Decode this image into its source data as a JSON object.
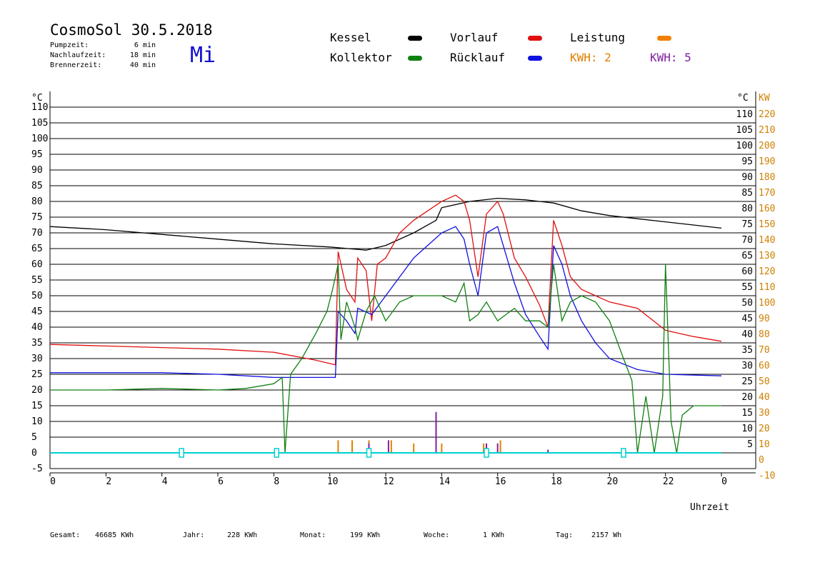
{
  "header": {
    "title": "CosmoSol 30.5.2018",
    "day": "Mi",
    "params": [
      {
        "label": "Pumpzeit:",
        "value": "6 min"
      },
      {
        "label": "Nachlaufzeit:",
        "value": "18 min"
      },
      {
        "label": "Brennerzeit:",
        "value": "40 min"
      }
    ]
  },
  "legend": [
    {
      "label": "Kessel",
      "color": "#000000"
    },
    {
      "label": "Vorlauf",
      "color": "#e01010"
    },
    {
      "label": "Leistung",
      "color": "#f08000"
    },
    {
      "label": "Kollektor",
      "color": "#108010"
    },
    {
      "label": "Rücklauf",
      "color": "#1010e0"
    },
    {
      "label": "KWH: 2",
      "color": "#e08000"
    },
    {
      "label": "KWH: 5",
      "color": "#8020a0"
    }
  ],
  "stats": [
    {
      "label": "Gesamt:",
      "value": "46685 KWh"
    },
    {
      "label": "Jahr:",
      "value": "228 KWh"
    },
    {
      "label": "Monat:",
      "value": "199 KWh"
    },
    {
      "label": "Woche:",
      "value": "1 KWh"
    },
    {
      "label": "Tag:",
      "value": "2157 Wh"
    }
  ],
  "chart_data": {
    "type": "line",
    "xlabel": "Uhrzeit",
    "ylabel_left": "°C",
    "ylabel_right_1": "°C",
    "ylabel_right_2": "KW",
    "xlim": [
      0,
      24
    ],
    "ylim": [
      -5,
      110
    ],
    "x_ticks": [
      "0",
      "2",
      "4",
      "6",
      "8",
      "10",
      "12",
      "14",
      "16",
      "18",
      "20",
      "22",
      "0"
    ],
    "y_ticks_left": [
      "110",
      "105",
      "100",
      "95",
      "90",
      "85",
      "80",
      "75",
      "70",
      "65",
      "60",
      "55",
      "50",
      "45",
      "40",
      "35",
      "30",
      "25",
      "20",
      "15",
      "10",
      "5",
      "0",
      "-5"
    ],
    "y_ticks_right": [
      "110",
      "105",
      "100",
      "95",
      "90",
      "85",
      "80",
      "75",
      "70",
      "65",
      "60",
      "55",
      "50",
      "45",
      "40",
      "35",
      "30",
      "25",
      "20",
      "15",
      "10",
      "5"
    ],
    "y_ticks_kw": [
      "220",
      "210",
      "200",
      "190",
      "180",
      "170",
      "160",
      "150",
      "140",
      "130",
      "120",
      "110",
      "100",
      "90",
      "80",
      "70",
      "60",
      "50",
      "40",
      "30",
      "20",
      "10",
      "0",
      "-10"
    ],
    "grid": true,
    "series": [
      {
        "name": "Kessel",
        "color": "#000000",
        "points": [
          [
            0,
            72
          ],
          [
            2,
            71
          ],
          [
            4,
            69.5
          ],
          [
            6,
            68
          ],
          [
            8,
            66.5
          ],
          [
            10,
            65.5
          ],
          [
            11.3,
            64.5
          ],
          [
            12,
            66
          ],
          [
            13,
            70
          ],
          [
            13.8,
            74
          ],
          [
            14,
            78
          ],
          [
            15,
            80
          ],
          [
            16,
            81
          ],
          [
            17,
            80.5
          ],
          [
            18,
            79.5
          ],
          [
            19,
            77
          ],
          [
            20,
            75.5
          ],
          [
            22,
            73.5
          ],
          [
            24,
            71.5
          ]
        ]
      },
      {
        "name": "Vorlauf",
        "color": "#e01010",
        "points": [
          [
            0,
            34.5
          ],
          [
            2,
            34
          ],
          [
            4,
            33.5
          ],
          [
            6,
            33
          ],
          [
            8,
            32
          ],
          [
            9.5,
            29.5
          ],
          [
            10.2,
            28
          ],
          [
            10.3,
            64
          ],
          [
            10.6,
            52
          ],
          [
            10.9,
            48
          ],
          [
            11,
            62
          ],
          [
            11.3,
            58
          ],
          [
            11.5,
            42
          ],
          [
            11.7,
            60
          ],
          [
            12,
            62
          ],
          [
            12.5,
            70
          ],
          [
            13,
            74
          ],
          [
            13.5,
            77
          ],
          [
            14,
            80
          ],
          [
            14.5,
            82
          ],
          [
            14.8,
            80
          ],
          [
            15,
            74
          ],
          [
            15.3,
            56
          ],
          [
            15.6,
            76
          ],
          [
            16,
            80
          ],
          [
            16.2,
            76
          ],
          [
            16.6,
            62
          ],
          [
            17,
            56
          ],
          [
            17.5,
            47
          ],
          [
            17.8,
            40
          ],
          [
            18,
            74
          ],
          [
            18.3,
            66
          ],
          [
            18.6,
            56
          ],
          [
            19,
            52
          ],
          [
            19.5,
            50
          ],
          [
            20,
            48
          ],
          [
            21,
            46
          ],
          [
            22,
            39
          ],
          [
            23,
            37
          ],
          [
            24,
            35.5
          ]
        ]
      },
      {
        "name": "Rücklauf",
        "color": "#1010e0",
        "points": [
          [
            0,
            25.5
          ],
          [
            2,
            25.5
          ],
          [
            4,
            25.5
          ],
          [
            6,
            25
          ],
          [
            8,
            24
          ],
          [
            10.2,
            24
          ],
          [
            10.3,
            45
          ],
          [
            10.6,
            42
          ],
          [
            10.9,
            38
          ],
          [
            11,
            46
          ],
          [
            11.5,
            44
          ],
          [
            12,
            50
          ],
          [
            12.5,
            56
          ],
          [
            13,
            62
          ],
          [
            13.5,
            66
          ],
          [
            14,
            70
          ],
          [
            14.5,
            72
          ],
          [
            14.8,
            68
          ],
          [
            15,
            60
          ],
          [
            15.3,
            50
          ],
          [
            15.6,
            70
          ],
          [
            16,
            72
          ],
          [
            16.2,
            66
          ],
          [
            16.6,
            54
          ],
          [
            17,
            44
          ],
          [
            17.5,
            37
          ],
          [
            17.8,
            33
          ],
          [
            18,
            66
          ],
          [
            18.3,
            60
          ],
          [
            18.6,
            50
          ],
          [
            19,
            42
          ],
          [
            19.5,
            35
          ],
          [
            20,
            30
          ],
          [
            21,
            26.5
          ],
          [
            22,
            25
          ],
          [
            24,
            24.5
          ]
        ]
      },
      {
        "name": "Kollektor",
        "color": "#108010",
        "points": [
          [
            0,
            20
          ],
          [
            2,
            20
          ],
          [
            4,
            20.5
          ],
          [
            6,
            20
          ],
          [
            7,
            20.5
          ],
          [
            8,
            22
          ],
          [
            8.3,
            24
          ],
          [
            8.4,
            0
          ],
          [
            8.6,
            25
          ],
          [
            9,
            30
          ],
          [
            9.5,
            38
          ],
          [
            9.9,
            45
          ],
          [
            10.1,
            52
          ],
          [
            10.3,
            60
          ],
          [
            10.4,
            36
          ],
          [
            10.6,
            48
          ],
          [
            10.9,
            40
          ],
          [
            11,
            36
          ],
          [
            11.3,
            45
          ],
          [
            11.6,
            50
          ],
          [
            12,
            42
          ],
          [
            12.5,
            48
          ],
          [
            13,
            50
          ],
          [
            13.5,
            50
          ],
          [
            14,
            50
          ],
          [
            14.5,
            48
          ],
          [
            14.8,
            54
          ],
          [
            15,
            42
          ],
          [
            15.3,
            44
          ],
          [
            15.6,
            48
          ],
          [
            16,
            42
          ],
          [
            16.3,
            44
          ],
          [
            16.6,
            46
          ],
          [
            17,
            42
          ],
          [
            17.5,
            42
          ],
          [
            17.8,
            40
          ],
          [
            18,
            60
          ],
          [
            18.3,
            42
          ],
          [
            18.6,
            48
          ],
          [
            19,
            50
          ],
          [
            19.5,
            48
          ],
          [
            20,
            42
          ],
          [
            20.5,
            30
          ],
          [
            20.8,
            23
          ],
          [
            21,
            0
          ],
          [
            21.3,
            18
          ],
          [
            21.6,
            0
          ],
          [
            21.9,
            18
          ],
          [
            22,
            60
          ],
          [
            22.2,
            10
          ],
          [
            22.4,
            0
          ],
          [
            22.6,
            12
          ],
          [
            23,
            15
          ],
          [
            24,
            15
          ]
        ]
      },
      {
        "name": "KWH: 2",
        "color": "#e08000",
        "points": [
          [
            10.3,
            4
          ],
          [
            10.8,
            4
          ],
          [
            11.4,
            4
          ],
          [
            12.2,
            4
          ],
          [
            13,
            3
          ],
          [
            14,
            3
          ],
          [
            15.5,
            3
          ],
          [
            16.1,
            4
          ]
        ]
      },
      {
        "name": "KWH: 5",
        "color": "#8020a0",
        "points": [
          [
            11.4,
            3
          ],
          [
            12.1,
            4
          ],
          [
            13.8,
            13
          ],
          [
            15.6,
            3
          ],
          [
            16,
            3
          ],
          [
            17.8,
            1
          ]
        ]
      },
      {
        "name": "Leistung",
        "color": "#00d0d0",
        "points": [
          [
            0,
            0
          ],
          [
            4.7,
            0
          ],
          [
            8.1,
            0
          ],
          [
            11.4,
            0
          ],
          [
            15.6,
            0
          ],
          [
            20.5,
            0
          ],
          [
            24,
            0
          ]
        ]
      }
    ]
  }
}
